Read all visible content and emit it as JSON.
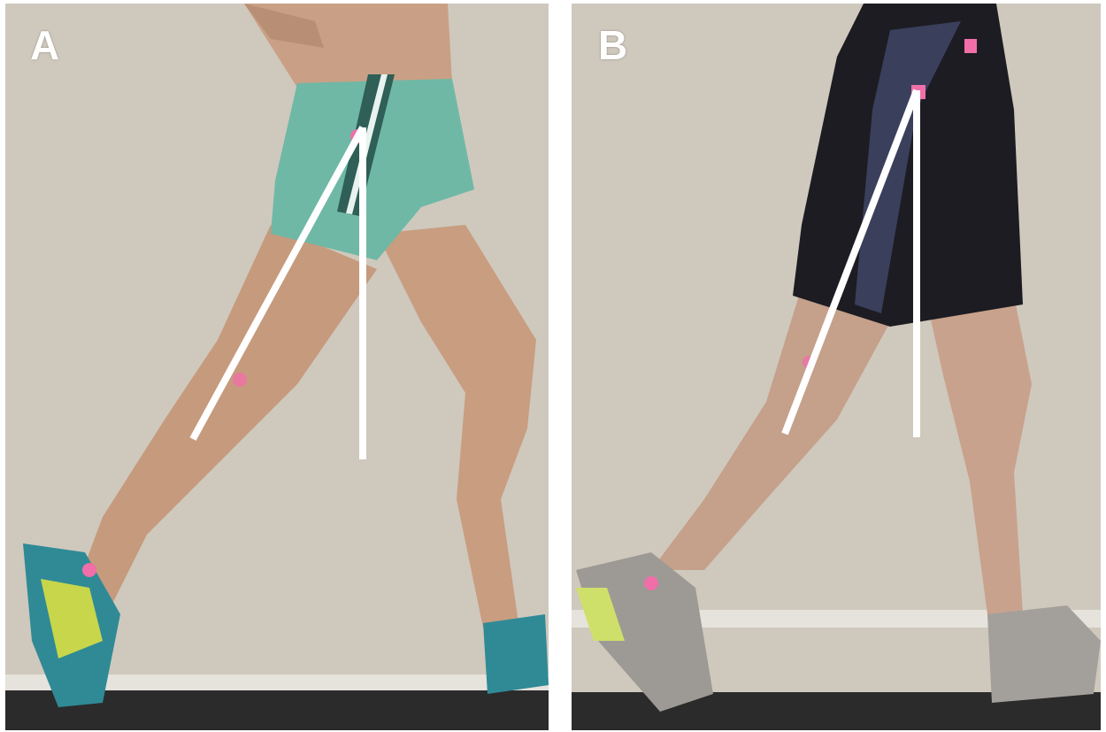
{
  "panels": [
    {
      "label": "A",
      "subject": "runner-with-teal-shorts"
    },
    {
      "label": "B",
      "subject": "runner-with-black-shorts"
    }
  ],
  "colors": {
    "wall": "#cfc8bd",
    "treadmill_belt": "#2b2b2b",
    "skin": "#c79a7c",
    "teal_shorts": "#6fb8a6",
    "black_shorts": "#1c1c22",
    "navy_panel": "#3a3f5c",
    "marker_pink": "#f06fa8",
    "angle_lines": "#ffffff"
  }
}
